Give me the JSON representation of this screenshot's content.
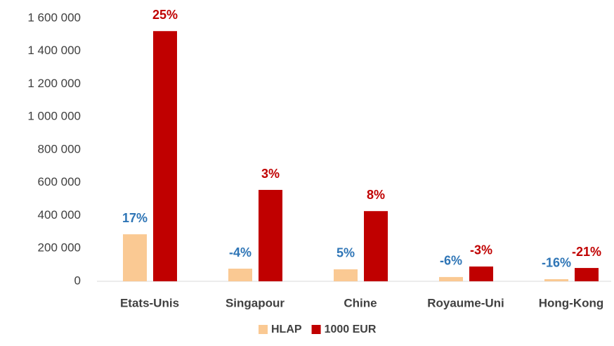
{
  "chart_data": {
    "type": "bar",
    "categories": [
      "Etats-Unis",
      "Singapour",
      "Chine",
      "Royaume-Uni",
      "Hong-Kong"
    ],
    "series": [
      {
        "name": "HLAP",
        "color": "#fac993",
        "label_color": "#2e75b6",
        "values": [
          286000,
          77000,
          73000,
          26000,
          13000
        ],
        "growth_labels": [
          "17%",
          "-4%",
          "5%",
          "-6%",
          "-16%"
        ]
      },
      {
        "name": "1000 EUR",
        "color": "#c00000",
        "label_color": "#c00000",
        "values": [
          1522000,
          556000,
          427000,
          90000,
          81000
        ],
        "growth_labels": [
          "25%",
          "3%",
          "8%",
          "-3%",
          "-21%"
        ]
      }
    ],
    "ylim": [
      0,
      1600000
    ],
    "yticks": [
      0,
      {
        "value": 200000,
        "label": "200 000"
      },
      {
        "value": 400000,
        "label": "400 000"
      },
      {
        "value": 600000,
        "label": "600 000"
      },
      {
        "value": 800000,
        "label": "800 000"
      },
      {
        "value": 1000000,
        "label": "1 000 000"
      },
      {
        "value": 1200000,
        "label": "1 200 000"
      },
      {
        "value": 1400000,
        "label": "1 400 000"
      },
      {
        "value": 1600000,
        "label": "1 600 000"
      }
    ],
    "grid": false,
    "legend": "bottom"
  }
}
